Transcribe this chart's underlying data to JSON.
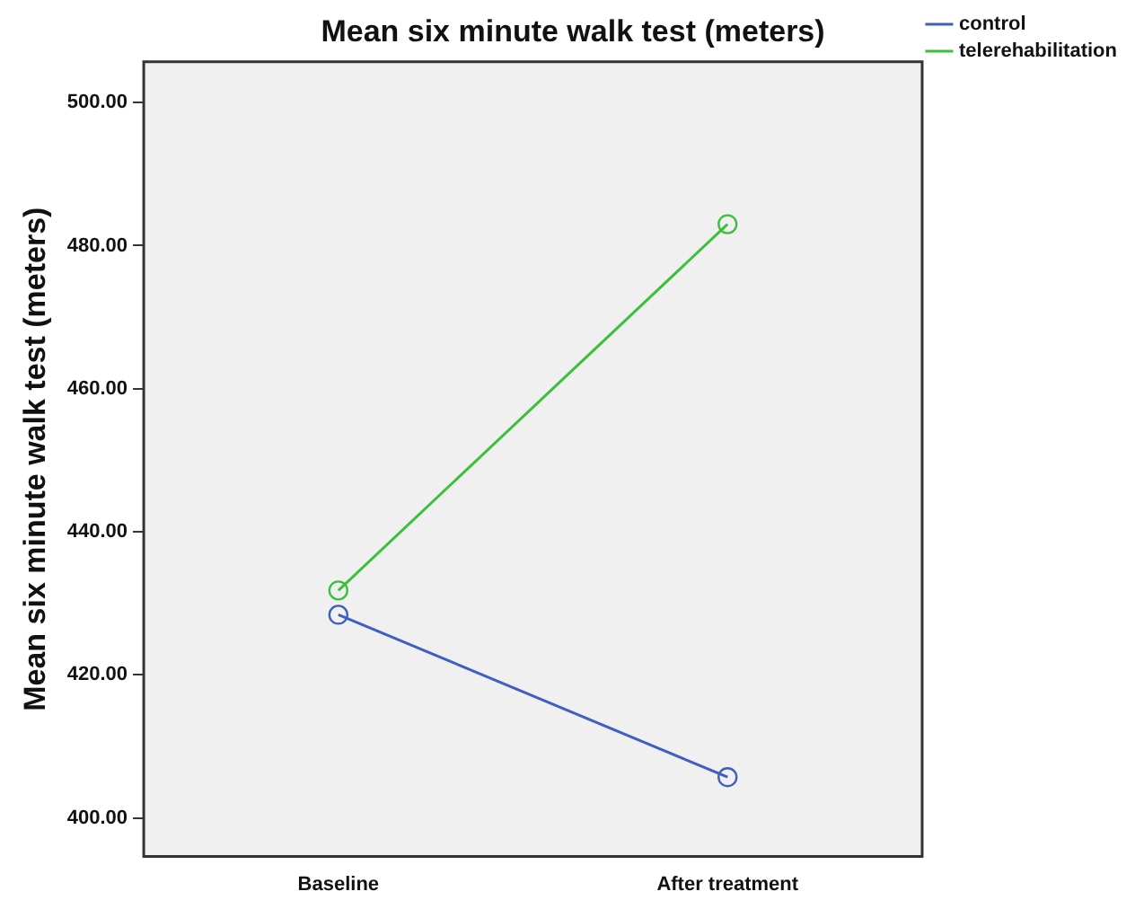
{
  "chart_data": {
    "type": "line",
    "title": "Mean six minute walk test (meters)",
    "ylabel": "Mean six minute walk test (meters)",
    "categories": [
      "Baseline",
      "After treatment"
    ],
    "series": [
      {
        "name": "control",
        "color": "#3f5fbf",
        "values": [
          428.4,
          405.7
        ]
      },
      {
        "name": "telerehabilitation",
        "color": "#3cbf3c",
        "values": [
          431.8,
          483.0
        ]
      }
    ],
    "ylim": [
      394.6,
      505.7
    ],
    "yticks": [
      {
        "value": 400,
        "label": "400.00"
      },
      {
        "value": 420,
        "label": "420.00"
      },
      {
        "value": 440,
        "label": "440.00"
      },
      {
        "value": 460,
        "label": "460.00"
      },
      {
        "value": 480,
        "label": "480.00"
      },
      {
        "value": 500,
        "label": "500.00"
      }
    ],
    "grid": false,
    "legend": "top right",
    "marker": "circle",
    "line_style": "solid"
  }
}
